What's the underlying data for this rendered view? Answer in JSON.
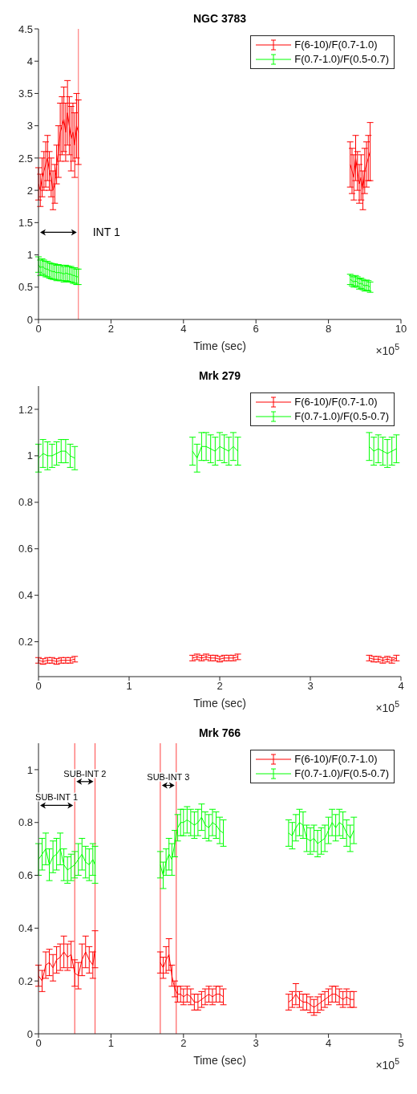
{
  "chart_data": [
    {
      "type": "line",
      "title": "NGC 3783",
      "xlabel": "Time (sec)",
      "xlim": [
        0,
        10
      ],
      "xticks": [
        0,
        2,
        4,
        6,
        8,
        10
      ],
      "ylim": [
        0,
        4.5
      ],
      "yticks": [
        0,
        0.5,
        1,
        1.5,
        2,
        2.5,
        3,
        3.5,
        4,
        4.5
      ],
      "legend": "top right",
      "series": [
        {
          "name": "F(6-10)/F(0.7-1.0)",
          "color": "#ff0000",
          "x": [
            0,
            0.05,
            0.1,
            0.15,
            0.2,
            0.25,
            0.3,
            0.35,
            0.4,
            0.45,
            0.5,
            0.55,
            0.6,
            0.65,
            0.7,
            0.75,
            0.8,
            0.85,
            0.9,
            0.95,
            1.0,
            1.05,
            1.1,
            4.8,
            8.6,
            8.65,
            8.7,
            8.75,
            8.8,
            8.85,
            8.9,
            8.95,
            9.0,
            9.05,
            9.1,
            9.15
          ],
          "values": [
            2.1,
            2.0,
            2.2,
            2.3,
            2.4,
            2.5,
            2.3,
            2.2,
            2.0,
            2.1,
            2.4,
            2.6,
            2.9,
            3.0,
            3.1,
            2.9,
            3.2,
            3.0,
            2.8,
            2.9,
            2.7,
            3.0,
            2.9,
            null,
            2.4,
            2.3,
            2.2,
            2.5,
            2.3,
            2.1,
            2.2,
            2.0,
            2.3,
            2.4,
            2.5,
            2.6
          ],
          "errors": [
            0.25,
            0.25,
            0.3,
            0.3,
            0.35,
            0.35,
            0.3,
            0.3,
            0.3,
            0.3,
            0.3,
            0.4,
            0.45,
            0.45,
            0.5,
            0.45,
            0.5,
            0.45,
            0.5,
            0.45,
            0.5,
            0.5,
            0.5,
            null,
            0.35,
            0.35,
            0.35,
            0.35,
            0.3,
            0.3,
            0.35,
            0.3,
            0.35,
            0.35,
            0.35,
            0.45
          ]
        },
        {
          "name": "F(0.7-1.0)/F(0.5-0.7)",
          "color": "#00ff00",
          "x": [
            0,
            0.05,
            0.1,
            0.15,
            0.2,
            0.25,
            0.3,
            0.35,
            0.4,
            0.45,
            0.5,
            0.55,
            0.6,
            0.65,
            0.7,
            0.75,
            0.8,
            0.85,
            0.9,
            0.95,
            1.0,
            1.05,
            1.1,
            4.8,
            8.6,
            8.65,
            8.7,
            8.75,
            8.8,
            8.85,
            8.9,
            8.95,
            9.0,
            9.05,
            9.1,
            9.15
          ],
          "values": [
            0.85,
            0.8,
            0.82,
            0.8,
            0.78,
            0.78,
            0.76,
            0.75,
            0.74,
            0.74,
            0.72,
            0.73,
            0.72,
            0.72,
            0.7,
            0.72,
            0.71,
            0.7,
            0.7,
            0.68,
            0.68,
            0.66,
            0.66,
            null,
            0.62,
            0.6,
            0.58,
            0.6,
            0.58,
            0.55,
            0.56,
            0.54,
            0.52,
            0.53,
            0.52,
            0.5
          ],
          "errors": [
            0.12,
            0.12,
            0.12,
            0.12,
            0.12,
            0.12,
            0.12,
            0.12,
            0.12,
            0.12,
            0.12,
            0.12,
            0.12,
            0.12,
            0.12,
            0.12,
            0.12,
            0.12,
            0.12,
            0.12,
            0.12,
            0.12,
            0.12,
            null,
            0.08,
            0.08,
            0.08,
            0.08,
            0.08,
            0.08,
            0.08,
            0.08,
            0.08,
            0.08,
            0.08,
            0.08
          ]
        }
      ],
      "ref_lines": [
        {
          "axis": "x",
          "value": 1.1,
          "color": "#ff8080"
        }
      ],
      "annotations": [
        "INT 1",
        "×10$^{5}$"
      ]
    },
    {
      "type": "line",
      "title": "Mrk 279",
      "xlabel": "Time (sec)",
      "xlim": [
        0,
        4
      ],
      "xticks": [
        0,
        1,
        2,
        3,
        4
      ],
      "ylim": [
        0.05,
        1.3
      ],
      "yticks": [
        0.2,
        0.4,
        0.6,
        0.8,
        1,
        1.2
      ],
      "legend": "top right",
      "series": [
        {
          "name": "F(6-10)/F(0.7-1.0)",
          "color": "#ff0000",
          "x": [
            0,
            0.05,
            0.1,
            0.15,
            0.2,
            0.25,
            0.3,
            0.35,
            0.4,
            1.0,
            1.7,
            1.75,
            1.8,
            1.85,
            1.9,
            1.95,
            2.0,
            2.05,
            2.1,
            2.15,
            2.2,
            3.0,
            3.65,
            3.7,
            3.75,
            3.8,
            3.85,
            3.9,
            3.95
          ],
          "values": [
            0.12,
            0.115,
            0.12,
            0.12,
            0.115,
            0.12,
            0.12,
            0.12,
            0.125,
            null,
            0.13,
            0.135,
            0.13,
            0.135,
            0.13,
            0.13,
            0.125,
            0.13,
            0.13,
            0.13,
            0.135,
            null,
            0.13,
            0.125,
            0.125,
            0.12,
            0.125,
            0.12,
            0.13
          ],
          "errors": [
            0.012,
            0.012,
            0.012,
            0.012,
            0.012,
            0.012,
            0.012,
            0.012,
            0.012,
            null,
            0.012,
            0.012,
            0.012,
            0.012,
            0.012,
            0.012,
            0.012,
            0.012,
            0.012,
            0.012,
            0.012,
            null,
            0.012,
            0.012,
            0.012,
            0.012,
            0.012,
            0.012,
            0.012
          ]
        },
        {
          "name": "F(0.7-1.0)/F(0.5-0.7)",
          "color": "#00ff00",
          "x": [
            0,
            0.05,
            0.1,
            0.15,
            0.2,
            0.25,
            0.3,
            0.35,
            0.4,
            1.0,
            1.7,
            1.75,
            1.8,
            1.85,
            1.9,
            1.95,
            2.0,
            2.05,
            2.1,
            2.15,
            2.2,
            3.0,
            3.65,
            3.7,
            3.75,
            3.8,
            3.85,
            3.9,
            3.95
          ],
          "values": [
            0.99,
            1.01,
            1.0,
            1.0,
            1.01,
            1.02,
            1.02,
            1.0,
            0.99,
            null,
            1.02,
            0.99,
            1.04,
            1.04,
            1.03,
            1.02,
            1.04,
            1.03,
            1.02,
            1.04,
            1.02,
            null,
            1.04,
            1.02,
            1.03,
            1.02,
            1.01,
            1.02,
            1.03
          ],
          "errors": [
            0.06,
            0.06,
            0.06,
            0.05,
            0.05,
            0.05,
            0.05,
            0.05,
            0.05,
            null,
            0.06,
            0.06,
            0.06,
            0.06,
            0.06,
            0.06,
            0.06,
            0.06,
            0.06,
            0.06,
            0.06,
            null,
            0.06,
            0.06,
            0.06,
            0.06,
            0.06,
            0.06,
            0.06
          ]
        }
      ],
      "annotations": [
        "×10$^{5}$"
      ]
    },
    {
      "type": "line",
      "title": "Mrk 766",
      "xlabel": "Time (sec)",
      "xlim": [
        0,
        5
      ],
      "xticks": [
        0,
        1,
        2,
        3,
        4,
        5
      ],
      "ylim": [
        0,
        1.1
      ],
      "yticks": [
        0,
        0.2,
        0.4,
        0.6,
        0.8,
        1
      ],
      "legend": "top right",
      "series": [
        {
          "name": "F(6-10)/F(0.7-1.0)",
          "color": "#ff0000",
          "x": [
            0,
            0.05,
            0.1,
            0.15,
            0.2,
            0.25,
            0.3,
            0.35,
            0.4,
            0.45,
            0.5,
            0.55,
            0.6,
            0.65,
            0.7,
            0.75,
            0.78,
            1.2,
            1.68,
            1.72,
            1.76,
            1.8,
            1.84,
            1.88,
            1.92,
            1.96,
            2.0,
            2.05,
            2.1,
            2.15,
            2.2,
            2.25,
            2.3,
            2.35,
            2.4,
            2.45,
            2.5,
            2.55,
            3.0,
            3.45,
            3.5,
            3.55,
            3.6,
            3.65,
            3.7,
            3.75,
            3.8,
            3.85,
            3.9,
            3.95,
            4.0,
            4.05,
            4.1,
            4.15,
            4.2,
            4.25,
            4.3,
            4.35
          ],
          "values": [
            0.22,
            0.2,
            0.26,
            0.27,
            0.25,
            0.28,
            0.29,
            0.31,
            0.29,
            0.3,
            0.23,
            0.22,
            0.28,
            0.31,
            0.28,
            0.26,
            0.32,
            null,
            0.27,
            0.25,
            0.28,
            0.3,
            0.22,
            0.17,
            0.15,
            0.15,
            0.14,
            0.15,
            0.14,
            0.12,
            0.12,
            0.13,
            0.14,
            0.15,
            0.14,
            0.15,
            0.15,
            0.14,
            null,
            0.12,
            0.13,
            0.15,
            0.13,
            0.12,
            0.12,
            0.11,
            0.1,
            0.11,
            0.12,
            0.13,
            0.14,
            0.15,
            0.15,
            0.14,
            0.13,
            0.14,
            0.13,
            0.13
          ],
          "errors": [
            0.04,
            0.04,
            0.05,
            0.05,
            0.05,
            0.05,
            0.05,
            0.06,
            0.05,
            0.05,
            0.05,
            0.05,
            0.06,
            0.06,
            0.05,
            0.05,
            0.07,
            null,
            0.04,
            0.04,
            0.05,
            0.06,
            0.04,
            0.03,
            0.03,
            0.03,
            0.03,
            0.03,
            0.03,
            0.03,
            0.03,
            0.03,
            0.03,
            0.03,
            0.03,
            0.03,
            0.03,
            0.03,
            null,
            0.03,
            0.03,
            0.04,
            0.03,
            0.03,
            0.03,
            0.03,
            0.03,
            0.03,
            0.03,
            0.03,
            0.03,
            0.03,
            0.03,
            0.03,
            0.03,
            0.03,
            0.03,
            0.03
          ]
        },
        {
          "name": "F(0.7-1.0)/F(0.5-0.7)",
          "color": "#00ff00",
          "x": [
            0,
            0.05,
            0.1,
            0.15,
            0.2,
            0.25,
            0.3,
            0.35,
            0.4,
            0.45,
            0.5,
            0.55,
            0.6,
            0.65,
            0.7,
            0.75,
            0.78,
            1.2,
            1.68,
            1.72,
            1.76,
            1.8,
            1.84,
            1.88,
            1.92,
            1.96,
            2.0,
            2.05,
            2.1,
            2.15,
            2.2,
            2.25,
            2.3,
            2.35,
            2.4,
            2.45,
            2.5,
            2.55,
            3.0,
            3.45,
            3.5,
            3.55,
            3.6,
            3.65,
            3.7,
            3.75,
            3.8,
            3.85,
            3.9,
            3.95,
            4.0,
            4.05,
            4.1,
            4.15,
            4.2,
            4.25,
            4.3,
            4.35
          ],
          "values": [
            0.66,
            0.68,
            0.7,
            0.64,
            0.67,
            0.68,
            0.7,
            0.64,
            0.62,
            0.63,
            0.64,
            0.66,
            0.68,
            0.65,
            0.64,
            0.66,
            0.64,
            null,
            0.64,
            0.6,
            0.65,
            0.68,
            0.66,
            0.72,
            0.78,
            0.8,
            0.8,
            0.81,
            0.8,
            0.79,
            0.8,
            0.82,
            0.79,
            0.78,
            0.8,
            0.79,
            0.77,
            0.76,
            null,
            0.76,
            0.75,
            0.78,
            0.8,
            0.79,
            0.74,
            0.73,
            0.74,
            0.72,
            0.73,
            0.74,
            0.77,
            0.8,
            0.78,
            0.8,
            0.79,
            0.76,
            0.74,
            0.77
          ],
          "errors": [
            0.06,
            0.06,
            0.06,
            0.06,
            0.06,
            0.06,
            0.06,
            0.06,
            0.05,
            0.05,
            0.05,
            0.06,
            0.06,
            0.06,
            0.06,
            0.06,
            0.07,
            null,
            0.05,
            0.05,
            0.05,
            0.06,
            0.06,
            0.05,
            0.05,
            0.05,
            0.05,
            0.05,
            0.05,
            0.05,
            0.05,
            0.05,
            0.05,
            0.05,
            0.05,
            0.05,
            0.05,
            0.05,
            null,
            0.05,
            0.05,
            0.05,
            0.05,
            0.05,
            0.05,
            0.05,
            0.05,
            0.05,
            0.05,
            0.05,
            0.05,
            0.05,
            0.05,
            0.05,
            0.05,
            0.05,
            0.05,
            0.05
          ]
        }
      ],
      "ref_lines": [
        {
          "axis": "x",
          "value": 0.5,
          "color": "#ff6060"
        },
        {
          "axis": "x",
          "value": 0.78,
          "color": "#ff6060"
        },
        {
          "axis": "x",
          "value": 1.68,
          "color": "#ff6060"
        },
        {
          "axis": "x",
          "value": 1.9,
          "color": "#ff6060"
        }
      ],
      "annotations": [
        "SUB-INT 1",
        "SUB-INT 2",
        "SUB-INT 3",
        "×10$^{5}$"
      ]
    }
  ]
}
